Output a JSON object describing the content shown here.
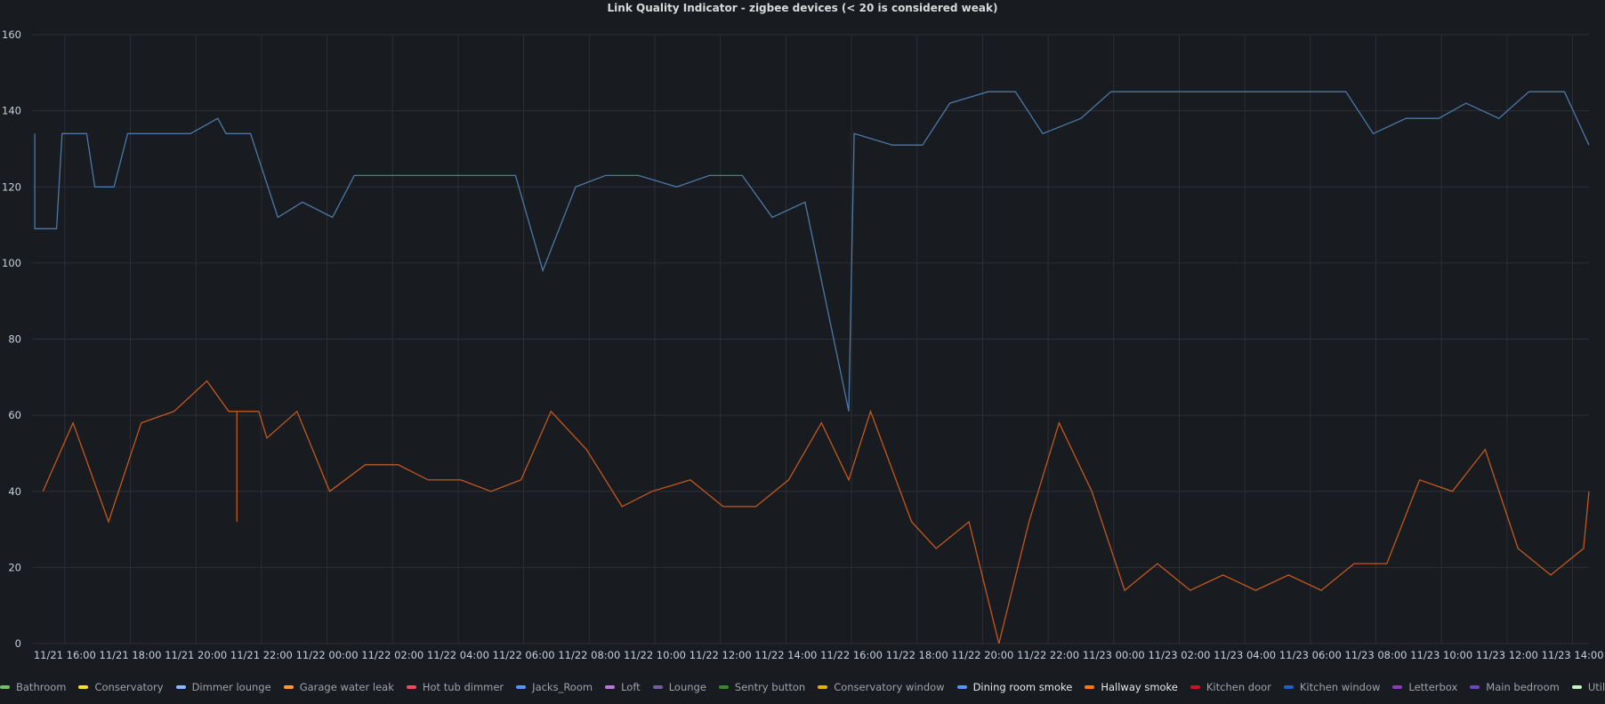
{
  "panel": {
    "title": "Link Quality Indicator - zigbee devices (< 20 is considered weak)"
  },
  "chart_data": {
    "type": "line",
    "title": "Link Quality Indicator - zigbee devices (< 20 is considered weak)",
    "xlabel": "",
    "ylabel": "",
    "ylim": [
      0,
      160
    ],
    "yticks": [
      0,
      20,
      40,
      60,
      80,
      100,
      120,
      140,
      160
    ],
    "xlim": [
      "11/21 15:00",
      "11/23 14:30"
    ],
    "xtick_labels": [
      "11/21 16:00",
      "11/21 18:00",
      "11/21 20:00",
      "11/21 22:00",
      "11/22 00:00",
      "11/22 02:00",
      "11/22 04:00",
      "11/22 06:00",
      "11/22 08:00",
      "11/22 10:00",
      "11/22 12:00",
      "11/22 14:00",
      "11/22 16:00",
      "11/22 18:00",
      "11/22 20:00",
      "11/22 22:00",
      "11/23 00:00",
      "11/23 02:00",
      "11/23 04:00",
      "11/23 06:00",
      "11/23 08:00",
      "11/23 10:00",
      "11/23 12:00",
      "11/23 14:00"
    ],
    "grid": true,
    "legend_position": "bottom",
    "series": [
      {
        "name": "Dining room smoke",
        "color": "#5794f2",
        "stroke": "#4c78a8",
        "points": [
          [
            "11/21 15:05",
            134
          ],
          [
            "11/21 15:05",
            109
          ],
          [
            "11/21 15:45",
            109
          ],
          [
            "11/21 15:55",
            134
          ],
          [
            "11/21 16:40",
            134
          ],
          [
            "11/21 16:55",
            120
          ],
          [
            "11/21 17:30",
            120
          ],
          [
            "11/21 17:55",
            134
          ],
          [
            "11/21 19:50",
            134
          ],
          [
            "11/21 20:40",
            138
          ],
          [
            "11/21 20:55",
            134
          ],
          [
            "11/21 21:40",
            134
          ],
          [
            "11/21 22:30",
            112
          ],
          [
            "11/21 23:15",
            116
          ],
          [
            "11/22 00:10",
            112
          ],
          [
            "11/22 00:50",
            123
          ],
          [
            "11/22 05:45",
            123
          ],
          [
            "11/22 06:35",
            98
          ],
          [
            "11/22 07:35",
            120
          ],
          [
            "11/22 08:30",
            123
          ],
          [
            "11/22 09:30",
            123
          ],
          [
            "11/22 10:40",
            120
          ],
          [
            "11/22 11:40",
            123
          ],
          [
            "11/22 12:40",
            123
          ],
          [
            "11/22 13:35",
            112
          ],
          [
            "11/22 14:35",
            116
          ],
          [
            "11/22 15:55",
            61
          ],
          [
            "11/22 16:05",
            134
          ],
          [
            "11/22 17:15",
            131
          ],
          [
            "11/22 18:10",
            131
          ],
          [
            "11/22 19:00",
            142
          ],
          [
            "11/22 20:10",
            145
          ],
          [
            "11/22 21:00",
            145
          ],
          [
            "11/22 21:50",
            134
          ],
          [
            "11/22 23:00",
            138
          ],
          [
            "11/22 23:55",
            145
          ],
          [
            "11/23 07:05",
            145
          ],
          [
            "11/23 07:55",
            134
          ],
          [
            "11/23 08:55",
            138
          ],
          [
            "11/23 09:55",
            138
          ],
          [
            "11/23 10:45",
            142
          ],
          [
            "11/23 11:45",
            138
          ],
          [
            "11/23 12:40",
            145
          ],
          [
            "11/23 13:45",
            145
          ],
          [
            "11/23 14:35",
            131
          ]
        ]
      },
      {
        "name": "Hallway smoke",
        "color": "#ff780a",
        "stroke": "#c4571f",
        "points": [
          [
            "11/21 15:20",
            40
          ],
          [
            "11/21 16:15",
            58
          ],
          [
            "11/21 17:20",
            32
          ],
          [
            "11/21 18:20",
            58
          ],
          [
            "11/21 19:20",
            61
          ],
          [
            "11/21 20:20",
            69
          ],
          [
            "11/21 21:00",
            61
          ],
          [
            "11/21 21:15",
            61
          ],
          [
            "11/21 21:15",
            32
          ],
          [
            "11/21 21:15",
            61
          ],
          [
            "11/21 21:55",
            61
          ],
          [
            "11/21 22:10",
            54
          ],
          [
            "11/21 23:05",
            61
          ],
          [
            "11/22 00:05",
            40
          ],
          [
            "11/22 01:10",
            47
          ],
          [
            "11/22 02:10",
            47
          ],
          [
            "11/22 03:05",
            43
          ],
          [
            "11/22 04:05",
            43
          ],
          [
            "11/22 05:00",
            40
          ],
          [
            "11/22 05:55",
            43
          ],
          [
            "11/22 06:50",
            61
          ],
          [
            "11/22 07:55",
            51
          ],
          [
            "11/22 09:00",
            36
          ],
          [
            "11/22 09:55",
            40
          ],
          [
            "11/22 11:05",
            43
          ],
          [
            "11/22 12:05",
            36
          ],
          [
            "11/22 13:05",
            36
          ],
          [
            "11/22 14:05",
            43
          ],
          [
            "11/22 15:05",
            58
          ],
          [
            "11/22 15:55",
            43
          ],
          [
            "11/22 16:35",
            61
          ],
          [
            "11/22 17:50",
            32
          ],
          [
            "11/22 18:35",
            25
          ],
          [
            "11/22 19:35",
            32
          ],
          [
            "11/22 20:30",
            0
          ],
          [
            "11/22 21:25",
            32
          ],
          [
            "11/22 22:20",
            58
          ],
          [
            "11/22 23:20",
            40
          ],
          [
            "11/23 00:20",
            14
          ],
          [
            "11/23 01:20",
            21
          ],
          [
            "11/23 02:20",
            14
          ],
          [
            "11/23 03:20",
            18
          ],
          [
            "11/23 04:20",
            14
          ],
          [
            "11/23 05:20",
            18
          ],
          [
            "11/23 06:20",
            14
          ],
          [
            "11/23 07:20",
            21
          ],
          [
            "11/23 08:20",
            21
          ],
          [
            "11/23 09:20",
            43
          ],
          [
            "11/23 10:20",
            40
          ],
          [
            "11/23 11:20",
            51
          ],
          [
            "11/23 12:20",
            25
          ],
          [
            "11/23 13:20",
            18
          ],
          [
            "11/23 14:20",
            25
          ],
          [
            "11/23 15:20",
            40
          ],
          [
            "11/23 16:20",
            40
          ]
        ]
      }
    ]
  },
  "legend": [
    {
      "name": "Bathroom",
      "color": "#73bf69",
      "active": false
    },
    {
      "name": "Conservatory",
      "color": "#fade2a",
      "active": false
    },
    {
      "name": "Dimmer lounge",
      "color": "#8ab8ff",
      "active": false
    },
    {
      "name": "Garage water leak",
      "color": "#ff9830",
      "active": false
    },
    {
      "name": "Hot tub dimmer",
      "color": "#f2495c",
      "active": false
    },
    {
      "name": "Jacks_Room",
      "color": "#5794f2",
      "active": false
    },
    {
      "name": "Loft",
      "color": "#b877d9",
      "active": false
    },
    {
      "name": "Lounge",
      "color": "#705da0",
      "active": false
    },
    {
      "name": "Sentry button",
      "color": "#37872d",
      "active": false
    },
    {
      "name": "Conservatory window",
      "color": "#e0b400",
      "active": false
    },
    {
      "name": "Dining room smoke",
      "color": "#5794f2",
      "active": true
    },
    {
      "name": "Hallway smoke",
      "color": "#ff780a",
      "active": true
    },
    {
      "name": "Kitchen door",
      "color": "#c4162a",
      "active": false
    },
    {
      "name": "Kitchen window",
      "color": "#1f60c4",
      "active": false
    },
    {
      "name": "Letterbox",
      "color": "#8f3bb8",
      "active": false
    },
    {
      "name": "Main bedroom",
      "color": "#6c4ab5",
      "active": false
    },
    {
      "name": "Utility window",
      "color": "#c8f2c2",
      "active": false
    }
  ]
}
